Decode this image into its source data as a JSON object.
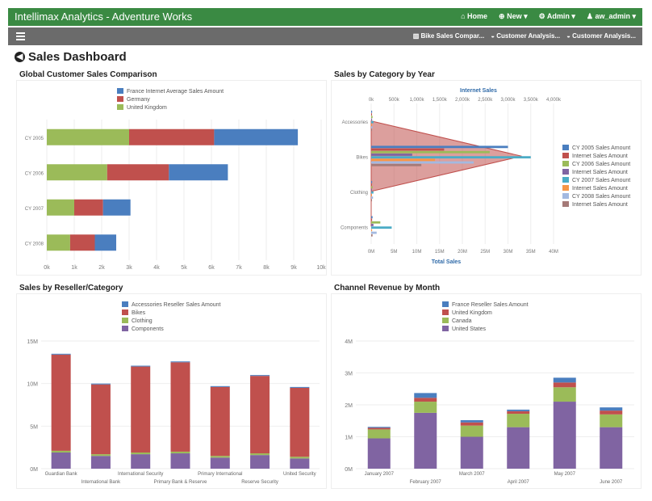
{
  "app": {
    "brand": "Intellimax Analytics - Adventure Works",
    "nav": [
      {
        "icon": "home-icon",
        "label": "Home"
      },
      {
        "icon": "plus-circle-icon",
        "label": "New ▾"
      },
      {
        "icon": "gear-icon",
        "label": "Admin ▾"
      },
      {
        "icon": "user-icon",
        "label": "aw_admin ▾"
      }
    ]
  },
  "subbar": {
    "links": [
      {
        "icon": "chart-icon",
        "label": "Bike Sales Compar..."
      },
      {
        "icon": "dashboard-icon",
        "label": "Customer Analysis..."
      },
      {
        "icon": "dashboard-icon",
        "label": "Customer Analysis..."
      }
    ]
  },
  "page": {
    "title": "Sales Dashboard"
  },
  "colors": {
    "blue": "#4a7ebf",
    "red": "#c0504d",
    "green": "#9bbb59",
    "purple": "#8064a2",
    "teal": "#4bacc6",
    "orange": "#f79646",
    "lightblue": "#a3b9e0",
    "brown": "#a57a78"
  },
  "chart_data": [
    {
      "id": "global",
      "title": "Global Customer Sales Comparison",
      "type": "bar",
      "orientation": "horizontal",
      "stacked": true,
      "categories": [
        "CY 2005",
        "CY 2006",
        "CY 2007",
        "CY 2008"
      ],
      "series": [
        {
          "name": "United Kingdom",
          "color": "#9bbb59",
          "values": [
            3000,
            2200,
            1000,
            850
          ]
        },
        {
          "name": "Germany",
          "color": "#c0504d",
          "values": [
            3100,
            2250,
            1050,
            900
          ]
        },
        {
          "name": "France Internet Average Sales Amount",
          "color": "#4a7ebf",
          "values": [
            3050,
            2150,
            1000,
            780
          ]
        }
      ],
      "legend_order": [
        "France Internet Average Sales Amount",
        "Germany",
        "United Kingdom"
      ],
      "xlim": [
        0,
        10000
      ],
      "xticks": [
        "0k",
        "1k",
        "2k",
        "3k",
        "4k",
        "5k",
        "6k",
        "7k",
        "8k",
        "9k",
        "10k"
      ]
    },
    {
      "id": "category",
      "title": "Sales by Category by Year",
      "type": "bar",
      "orientation": "horizontal",
      "categories": [
        "Accessories",
        "Bikes",
        "Clothing",
        "Components"
      ],
      "top_axis_title": "Internet Sales",
      "top_ticks": [
        "0k",
        "500k",
        "1,000k",
        "1,500k",
        "2,000k",
        "2,500k",
        "3,000k",
        "3,500k",
        "4,000k"
      ],
      "bottom_axis_title": "Total Sales",
      "bottom_ticks": [
        "0M",
        "5M",
        "10M",
        "15M",
        "20M",
        "25M",
        "30M",
        "35M",
        "40M"
      ],
      "area_series": {
        "name": "Internet Sales Amount",
        "color": "#c0504d",
        "values": [
          0,
          3300000,
          0,
          0
        ]
      },
      "series": [
        {
          "name": "CY 2005 Sales Amount",
          "color": "#4a7ebf",
          "values": [
            0.2,
            30,
            0.2,
            0.3
          ]
        },
        {
          "name": "Internet Sales Amount",
          "color": "#c0504d",
          "values": [
            0.1,
            16,
            0.1,
            0.2
          ]
        },
        {
          "name": "CY 2006 Sales Amount",
          "color": "#9bbb59",
          "values": [
            0.3,
            26,
            0.3,
            2
          ]
        },
        {
          "name": "Internet Sales Amount",
          "color": "#8064a2",
          "values": [
            0.2,
            9,
            0.1,
            0.5
          ]
        },
        {
          "name": "CY 2007 Sales Amount",
          "color": "#4bacc6",
          "values": [
            0.5,
            35,
            0.5,
            4.5
          ]
        },
        {
          "name": "Internet Sales Amount",
          "color": "#f79646",
          "values": [
            0.1,
            14,
            0.1,
            0.2
          ]
        },
        {
          "name": "CY 2008 Sales Amount",
          "color": "#a3b9e0",
          "values": [
            0.3,
            22.5,
            0.4,
            1.2
          ]
        },
        {
          "name": "Internet Sales Amount",
          "color": "#a57a78",
          "values": [
            0.1,
            11,
            0.1,
            0.3
          ]
        }
      ]
    },
    {
      "id": "reseller",
      "title": "Sales by Reseller/Category",
      "type": "bar",
      "stacked": true,
      "categories": [
        "Guardian Bank",
        "International Bank",
        "International Security",
        "Primary Bank & Reserve",
        "Primary International",
        "Reserve Security",
        "United Security"
      ],
      "series": [
        {
          "name": "Components",
          "color": "#8064a2",
          "values": [
            1.9,
            1.5,
            1.7,
            1.8,
            1.3,
            1.6,
            1.2
          ]
        },
        {
          "name": "Clothing",
          "color": "#9bbb59",
          "values": [
            0.2,
            0.2,
            0.2,
            0.2,
            0.2,
            0.2,
            0.2
          ]
        },
        {
          "name": "Bikes",
          "color": "#c0504d",
          "values": [
            11.3,
            8.2,
            10.1,
            10.5,
            8.1,
            9.1,
            8.1
          ]
        },
        {
          "name": "Accessories Reseller Sales Amount",
          "color": "#4a7ebf",
          "values": [
            0.1,
            0.1,
            0.1,
            0.1,
            0.1,
            0.1,
            0.1
          ]
        }
      ],
      "legend_order": [
        "Accessories Reseller Sales Amount",
        "Bikes",
        "Clothing",
        "Components"
      ],
      "ylim": [
        0,
        15
      ],
      "yticks": [
        "0M",
        "5M",
        "10M",
        "15M"
      ]
    },
    {
      "id": "channel",
      "title": "Channel Revenue by Month",
      "type": "bar",
      "stacked": true,
      "categories": [
        "January 2007",
        "February 2007",
        "March 2007",
        "April 2007",
        "May 2007",
        "June 2007"
      ],
      "series": [
        {
          "name": "United States",
          "color": "#8064a2",
          "values": [
            0.95,
            1.75,
            1.0,
            1.3,
            2.1,
            1.3
          ]
        },
        {
          "name": "Canada",
          "color": "#9bbb59",
          "values": [
            0.28,
            0.35,
            0.35,
            0.42,
            0.45,
            0.4
          ]
        },
        {
          "name": "United Kingdom",
          "color": "#c0504d",
          "values": [
            0.05,
            0.12,
            0.1,
            0.08,
            0.15,
            0.12
          ]
        },
        {
          "name": "France Reseller Sales Amount",
          "color": "#4a7ebf",
          "values": [
            0.03,
            0.15,
            0.07,
            0.05,
            0.15,
            0.1
          ]
        }
      ],
      "legend_order": [
        "France Reseller Sales Amount",
        "United Kingdom",
        "Canada",
        "United States"
      ],
      "ylim": [
        0,
        4
      ],
      "yticks": [
        "0M",
        "1M",
        "2M",
        "3M",
        "4M"
      ]
    }
  ]
}
